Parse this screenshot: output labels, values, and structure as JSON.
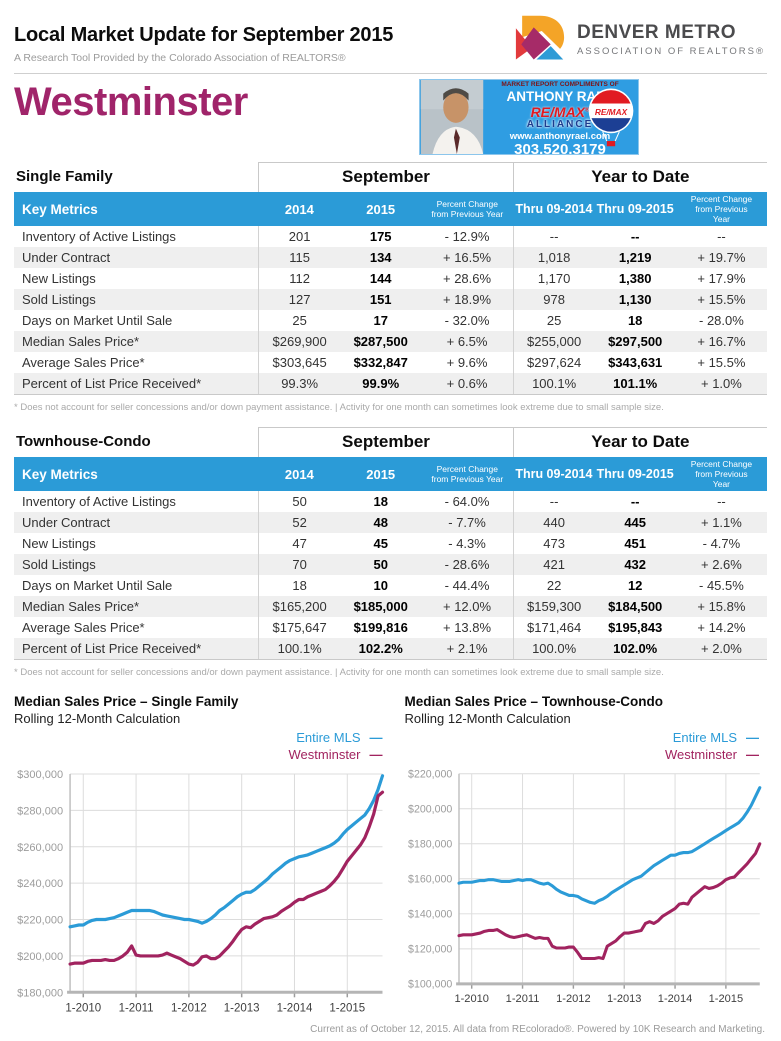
{
  "header": {
    "title": "Local Market Update for September 2015",
    "subtitle": "A Research Tool Provided by the Colorado Association of REALTORS®",
    "logo_line1": "DENVER METRO",
    "logo_line2": "ASSOCIATION OF REALTORS®"
  },
  "city": "Westminster",
  "ad": {
    "compliments": "MARKET REPORT COMPLIMENTS OF",
    "name": "ANTHONY RAEL",
    "brand": "RE/MAX",
    "brand_sub": "ALLIANCE",
    "website": "www.anthonyrael.com",
    "phone": "303.520.3179",
    "balloon_text": "RE/MAX"
  },
  "tables": [
    {
      "section": "Single Family",
      "groups": [
        "September",
        "Year to Date"
      ],
      "columns": [
        "Key Metrics",
        "2014",
        "2015",
        "Percent Change from Previous Year",
        "Thru 09-2014",
        "Thru 09-2015",
        "Percent Change from Previous Year"
      ],
      "rows": [
        {
          "label": "Inventory of Active Listings",
          "values": [
            "201",
            "175",
            "- 12.9%",
            "--",
            "--",
            "--"
          ]
        },
        {
          "label": "Under Contract",
          "values": [
            "115",
            "134",
            "+ 16.5%",
            "1,018",
            "1,219",
            "+ 19.7%"
          ]
        },
        {
          "label": "New Listings",
          "values": [
            "112",
            "144",
            "+ 28.6%",
            "1,170",
            "1,380",
            "+ 17.9%"
          ]
        },
        {
          "label": "Sold Listings",
          "values": [
            "127",
            "151",
            "+ 18.9%",
            "978",
            "1,130",
            "+ 15.5%"
          ]
        },
        {
          "label": "Days on Market Until Sale",
          "values": [
            "25",
            "17",
            "- 32.0%",
            "25",
            "18",
            "- 28.0%"
          ]
        },
        {
          "label": "Median Sales Price*",
          "values": [
            "$269,900",
            "$287,500",
            "+ 6.5%",
            "$255,000",
            "$297,500",
            "+ 16.7%"
          ]
        },
        {
          "label": "Average Sales Price*",
          "values": [
            "$303,645",
            "$332,847",
            "+ 9.6%",
            "$297,624",
            "$343,631",
            "+ 15.5%"
          ]
        },
        {
          "label": "Percent of List Price Received*",
          "values": [
            "99.3%",
            "99.9%",
            "+ 0.6%",
            "100.1%",
            "101.1%",
            "+ 1.0%"
          ]
        }
      ],
      "footnote": "* Does not account for seller concessions and/or down payment assistance.  |  Activity for one month can sometimes look extreme due to small sample size."
    },
    {
      "section": "Townhouse-Condo",
      "groups": [
        "September",
        "Year to Date"
      ],
      "columns": [
        "Key Metrics",
        "2014",
        "2015",
        "Percent Change from Previous Year",
        "Thru 09-2014",
        "Thru 09-2015",
        "Percent Change from Previous Year"
      ],
      "rows": [
        {
          "label": "Inventory of Active Listings",
          "values": [
            "50",
            "18",
            "- 64.0%",
            "--",
            "--",
            "--"
          ]
        },
        {
          "label": "Under Contract",
          "values": [
            "52",
            "48",
            "- 7.7%",
            "440",
            "445",
            "+ 1.1%"
          ]
        },
        {
          "label": "New Listings",
          "values": [
            "47",
            "45",
            "- 4.3%",
            "473",
            "451",
            "- 4.7%"
          ]
        },
        {
          "label": "Sold Listings",
          "values": [
            "70",
            "50",
            "- 28.6%",
            "421",
            "432",
            "+ 2.6%"
          ]
        },
        {
          "label": "Days on Market Until Sale",
          "values": [
            "18",
            "10",
            "- 44.4%",
            "22",
            "12",
            "- 45.5%"
          ]
        },
        {
          "label": "Median Sales Price*",
          "values": [
            "$165,200",
            "$185,000",
            "+ 12.0%",
            "$159,300",
            "$184,500",
            "+ 15.8%"
          ]
        },
        {
          "label": "Average Sales Price*",
          "values": [
            "$175,647",
            "$199,816",
            "+ 13.8%",
            "$171,464",
            "$195,843",
            "+ 14.2%"
          ]
        },
        {
          "label": "Percent of List Price Received*",
          "values": [
            "100.1%",
            "102.2%",
            "+ 2.1%",
            "100.0%",
            "102.0%",
            "+ 2.0%"
          ]
        }
      ],
      "footnote": "* Does not account for seller concessions and/or down payment assistance.  |  Activity for one month can sometimes look extreme due to small sample size."
    }
  ],
  "chart_data": [
    {
      "type": "line",
      "title": "Median Sales Price – Single Family",
      "subtitle": "Rolling 12-Month Calculation",
      "x_start": "10-2009",
      "x_frequency": "monthly",
      "x_tick_labels": [
        "1-2010",
        "1-2011",
        "1-2012",
        "1-2013",
        "1-2014",
        "1-2015"
      ],
      "x_tick_indices": [
        3,
        15,
        27,
        39,
        51,
        63
      ],
      "ylim": [
        180000,
        300000
      ],
      "y_tick_step": 20000,
      "values_unit": "thousand USD",
      "grid": true,
      "legend_position": "top-right",
      "series": [
        {
          "name": "Entire MLS",
          "color": "#2b9bd7",
          "values": [
            216,
            216.5,
            217,
            217,
            218.5,
            219.5,
            220,
            220,
            220,
            220.5,
            221,
            222,
            223,
            224,
            225,
            225,
            225,
            225,
            225,
            224.5,
            223.5,
            222.5,
            222,
            221.5,
            221,
            220.5,
            220,
            220,
            219.5,
            219,
            218,
            219,
            220.5,
            222.5,
            225,
            226.5,
            228.5,
            230.5,
            232.5,
            234,
            235,
            235,
            236.5,
            238.5,
            240.5,
            242.5,
            245,
            247,
            249,
            251,
            252.5,
            253.5,
            254.5,
            255,
            255.5,
            256.5,
            257.5,
            258.5,
            259.5,
            260.5,
            262,
            264,
            267,
            269.5,
            271.5,
            273.5,
            275.5,
            277.5,
            281,
            285.5,
            291.5,
            299
          ]
        },
        {
          "name": "Westminster",
          "color": "#a1235f",
          "values": [
            195.5,
            196,
            196,
            196,
            197,
            197.5,
            197.5,
            197.5,
            198,
            197.5,
            197.5,
            198.5,
            200,
            202,
            205.5,
            200.5,
            200,
            200,
            200,
            200,
            200,
            200.5,
            201.5,
            200.5,
            199.5,
            198.5,
            197,
            195.5,
            195,
            196.5,
            199.5,
            200,
            198.5,
            198.5,
            200,
            202.5,
            205,
            208,
            211.5,
            214.5,
            216,
            215.5,
            217.5,
            219,
            220.5,
            221,
            221.5,
            222.5,
            224.5,
            226,
            227.5,
            229.5,
            231,
            231,
            232.5,
            233.5,
            234.5,
            235.5,
            236.5,
            238.5,
            241,
            244,
            248,
            252,
            255,
            258,
            261,
            265,
            271,
            278,
            288,
            290
          ]
        }
      ]
    },
    {
      "type": "line",
      "title": "Median Sales Price – Townhouse-Condo",
      "subtitle": "Rolling 12-Month Calculation",
      "x_start": "10-2009",
      "x_frequency": "monthly",
      "x_tick_labels": [
        "1-2010",
        "1-2011",
        "1-2012",
        "1-2013",
        "1-2014",
        "1-2015"
      ],
      "x_tick_indices": [
        3,
        15,
        27,
        39,
        51,
        63
      ],
      "ylim": [
        100000,
        220000
      ],
      "y_tick_step": 20000,
      "values_unit": "thousand USD",
      "grid": true,
      "legend_position": "top-right",
      "series": [
        {
          "name": "Entire MLS",
          "color": "#2b9bd7",
          "values": [
            157.5,
            158,
            158,
            158,
            158.5,
            159,
            159,
            159.5,
            159.5,
            159,
            158.5,
            158.5,
            158.5,
            159,
            159.5,
            159,
            159.5,
            159.5,
            158.5,
            157.5,
            157,
            157.5,
            156,
            154,
            152.5,
            151.5,
            150.5,
            150.5,
            150,
            148.5,
            147.5,
            146.5,
            146,
            147.5,
            148.5,
            150,
            152,
            153.5,
            155,
            156.5,
            158,
            159.5,
            160.5,
            161.5,
            163.5,
            165.5,
            167.5,
            169,
            170.5,
            172,
            173.5,
            173.5,
            174.5,
            175,
            175,
            175.5,
            177,
            178.5,
            180,
            181.5,
            183,
            184.5,
            186,
            187.5,
            189,
            190.5,
            192,
            194.5,
            198,
            202,
            207,
            212
          ]
        },
        {
          "name": "Westminster",
          "color": "#a1235f",
          "values": [
            127.5,
            128,
            128,
            128,
            128.5,
            129,
            130,
            130.5,
            130.5,
            131,
            129.5,
            128,
            127,
            126.5,
            127,
            127.5,
            128,
            127,
            126,
            126.5,
            126,
            126,
            121.5,
            120.5,
            120.5,
            120.5,
            121,
            121,
            118,
            114.5,
            114.5,
            114.5,
            114.5,
            115,
            114.5,
            121.5,
            123,
            124.5,
            127,
            129,
            129,
            129.5,
            130,
            130.5,
            134.5,
            135.5,
            134.5,
            136,
            138.5,
            140,
            141.5,
            143,
            145.5,
            146,
            145.5,
            149.5,
            151.5,
            153.5,
            155.5,
            154.5,
            155,
            156,
            157.5,
            159.5,
            160.5,
            161,
            163.5,
            166,
            168.5,
            171.5,
            174.5,
            180
          ]
        }
      ]
    }
  ],
  "footer": "Current as of October 12, 2015. All data from REcolorado®. Powered by 10K Research and Marketing.",
  "colors": {
    "accent_blue": "#2b9bd7",
    "city_magenta": "#a0246a",
    "line_entire_mls": "#2b9bd7",
    "line_westminster": "#a1235f",
    "table_alt_row": "#efefef",
    "grid_line": "#dcdcdc",
    "ad_background": "#2f9de2",
    "remax_red": "#e11b22",
    "remax_blue": "#1d3d8f"
  }
}
